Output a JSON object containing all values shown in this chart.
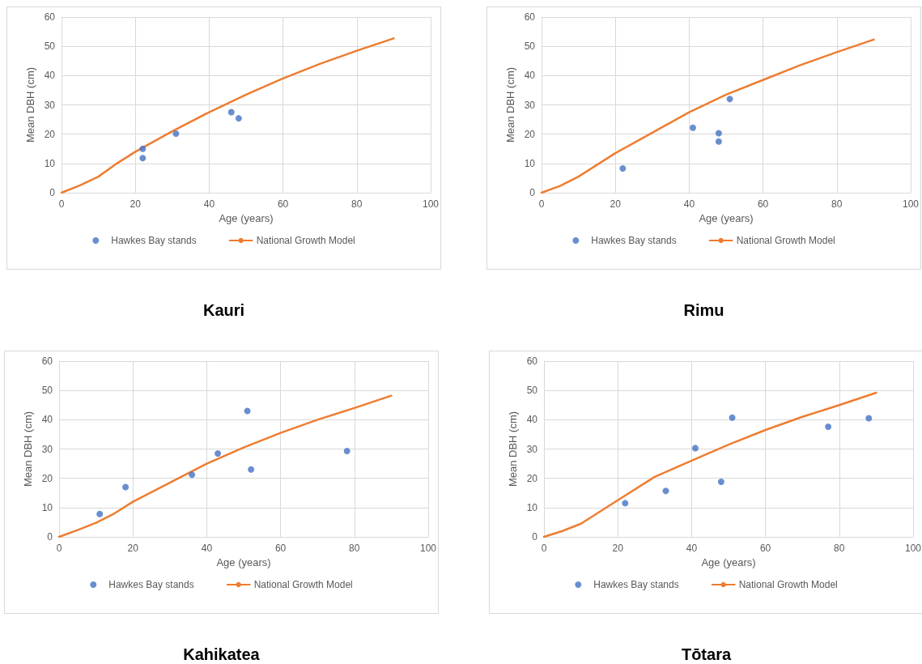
{
  "chart_data": [
    {
      "type": "scatter",
      "title": "Kauri",
      "xlabel": "Age (years)",
      "ylabel": "Mean DBH (cm)",
      "xlim": [
        0,
        100
      ],
      "xticks": [
        0,
        20,
        40,
        60,
        80,
        100
      ],
      "ylim": [
        0,
        60
      ],
      "yticks": [
        0,
        10,
        20,
        30,
        40,
        50,
        60
      ],
      "grid": true,
      "legend": "bottom",
      "series": [
        {
          "name": "Hawkes Bay stands",
          "marker": "circle",
          "color": "#4472c4",
          "x": [
            22,
            22,
            31,
            46,
            48
          ],
          "values": [
            15,
            11.8,
            20.2,
            27.5,
            25.4
          ]
        },
        {
          "name": "National Growth Model",
          "type": "line",
          "marker": "none",
          "color": "#ed7d31",
          "x": [
            0,
            5,
            10,
            15,
            20,
            30,
            40,
            50,
            60,
            70,
            80,
            90
          ],
          "values": [
            0,
            2.5,
            5.5,
            10,
            14,
            21,
            27.5,
            33.5,
            39,
            44,
            48.5,
            52.7
          ]
        }
      ]
    },
    {
      "type": "scatter",
      "title": "Rimu",
      "xlabel": "Age (years)",
      "ylabel": "Mean DBH (cm)",
      "xlim": [
        0,
        100
      ],
      "xticks": [
        0,
        20,
        40,
        60,
        80,
        100
      ],
      "ylim": [
        0,
        60
      ],
      "yticks": [
        0,
        10,
        20,
        30,
        40,
        50,
        60
      ],
      "grid": true,
      "legend": "bottom",
      "series": [
        {
          "name": "Hawkes Bay stands",
          "marker": "circle",
          "color": "#4472c4",
          "x": [
            22,
            41,
            48,
            48,
            51
          ],
          "values": [
            8.3,
            22.2,
            20.3,
            17.5,
            32
          ]
        },
        {
          "name": "National Growth Model",
          "type": "line",
          "marker": "none",
          "color": "#ed7d31",
          "x": [
            0,
            5,
            10,
            15,
            20,
            30,
            40,
            50,
            60,
            70,
            80,
            90
          ],
          "values": [
            0,
            2.3,
            5.5,
            9.5,
            13.5,
            20.5,
            27.5,
            33.5,
            38.5,
            43.5,
            48,
            52.3
          ]
        }
      ]
    },
    {
      "type": "scatter",
      "title": "Kahikatea",
      "xlabel": "Age (years)",
      "ylabel": "Mean DBH (cm)",
      "xlim": [
        0,
        100
      ],
      "xticks": [
        0,
        20,
        40,
        60,
        80,
        100
      ],
      "ylim": [
        0,
        60
      ],
      "yticks": [
        0,
        10,
        20,
        30,
        40,
        50,
        60
      ],
      "grid": true,
      "legend": "bottom",
      "series": [
        {
          "name": "Hawkes Bay stands",
          "marker": "circle",
          "color": "#4472c4",
          "x": [
            11,
            18,
            36,
            43,
            51,
            52,
            78
          ],
          "values": [
            7.8,
            17,
            21.2,
            28.5,
            43,
            23,
            29.3
          ]
        },
        {
          "name": "National Growth Model",
          "type": "line",
          "marker": "none",
          "color": "#ed7d31",
          "x": [
            0,
            5,
            10,
            15,
            20,
            30,
            40,
            50,
            60,
            70,
            80,
            90
          ],
          "values": [
            0,
            2.3,
            4.8,
            8,
            12,
            18.5,
            25,
            30.5,
            35.5,
            40,
            44,
            48.2
          ]
        }
      ]
    },
    {
      "type": "scatter",
      "title": "Tōtara",
      "xlabel": "Age (years)",
      "ylabel": "Mean DBH (cm)",
      "xlim": [
        0,
        100
      ],
      "xticks": [
        0,
        20,
        40,
        60,
        80,
        100
      ],
      "ylim": [
        0,
        60
      ],
      "yticks": [
        0,
        10,
        20,
        30,
        40,
        50,
        60
      ],
      "grid": true,
      "legend": "bottom",
      "series": [
        {
          "name": "Hawkes Bay stands",
          "marker": "circle",
          "color": "#4472c4",
          "x": [
            22,
            33,
            41,
            48,
            51,
            77,
            88
          ],
          "values": [
            11.5,
            15.7,
            30.3,
            18.8,
            40.7,
            37.6,
            40.5
          ]
        },
        {
          "name": "National Growth Model",
          "type": "line",
          "marker": "none",
          "color": "#ed7d31",
          "x": [
            0,
            5,
            10,
            15,
            20,
            30,
            40,
            50,
            60,
            70,
            80,
            90
          ],
          "values": [
            0,
            2,
            4.5,
            8.5,
            12.5,
            20.5,
            26,
            31.5,
            36.5,
            41,
            45,
            49.2
          ]
        }
      ]
    }
  ]
}
